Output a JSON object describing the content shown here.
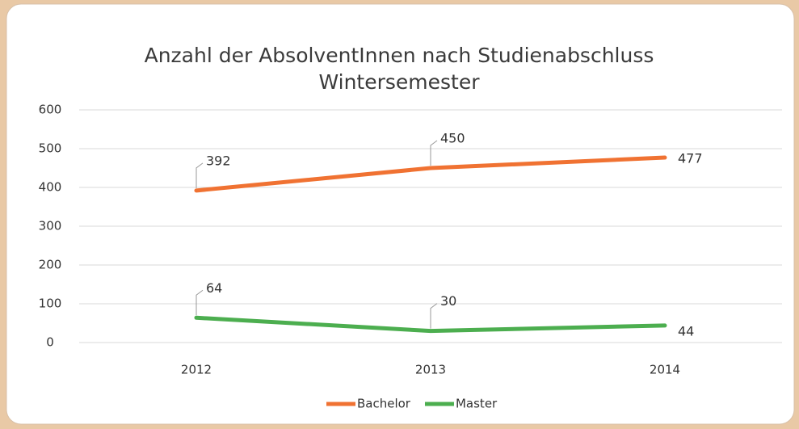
{
  "chart_data": {
    "type": "line",
    "title": "Anzahl der AbsolventInnen nach Studienabschluss",
    "subtitle": "Wintersemester",
    "categories": [
      "2012",
      "2013",
      "2014"
    ],
    "series": [
      {
        "name": "Bachelor",
        "color": "#f07232",
        "values": [
          392,
          450,
          477
        ]
      },
      {
        "name": "Master",
        "color": "#4cae4f",
        "values": [
          64,
          30,
          44
        ]
      }
    ],
    "ylim": [
      0,
      600
    ],
    "yticks": [
      0,
      100,
      200,
      300,
      400,
      500,
      600
    ],
    "grid": true,
    "legend": "bottom"
  }
}
